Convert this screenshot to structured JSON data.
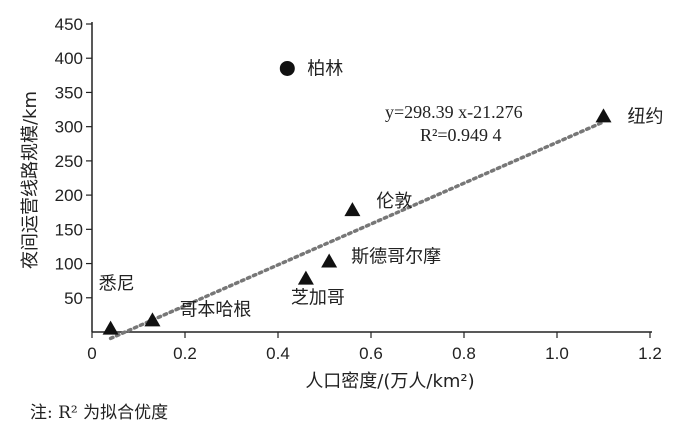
{
  "chart_data": {
    "type": "scatter",
    "xlabel": "人口密度/(万人/km²)",
    "ylabel": "夜间运营线路规模/km",
    "xlim": [
      0,
      1.2
    ],
    "ylim": [
      0,
      450
    ],
    "x_ticks": [
      "0",
      "0.2",
      "0.4",
      "0.6",
      "0.8",
      "1.0",
      "1.2"
    ],
    "y_ticks": [
      "50",
      "100",
      "150",
      "200",
      "250",
      "300",
      "350",
      "400",
      "450"
    ],
    "points": [
      {
        "label": "悉尼",
        "x": 0.04,
        "y": 5,
        "marker": "triangle"
      },
      {
        "label": "哥本哈根",
        "x": 0.13,
        "y": 17,
        "marker": "triangle"
      },
      {
        "label": "柏林",
        "x": 0.42,
        "y": 385,
        "marker": "circle"
      },
      {
        "label": "芝加哥",
        "x": 0.46,
        "y": 78,
        "marker": "triangle"
      },
      {
        "label": "斯德哥尔摩",
        "x": 0.51,
        "y": 103,
        "marker": "triangle"
      },
      {
        "label": "伦敦",
        "x": 0.56,
        "y": 178,
        "marker": "triangle"
      },
      {
        "label": "纽约",
        "x": 1.1,
        "y": 315,
        "marker": "triangle"
      }
    ],
    "trendline": {
      "slope": 298.39,
      "intercept": -21.276,
      "x_range": [
        0.04,
        1.1
      ],
      "style": "dotted",
      "color": "#777777"
    },
    "equation_lines": [
      "y=298.39 x-21.276",
      "R²=0.949 4"
    ],
    "grid": false,
    "legend": "none"
  },
  "note": "注: R² 为拟合优度"
}
